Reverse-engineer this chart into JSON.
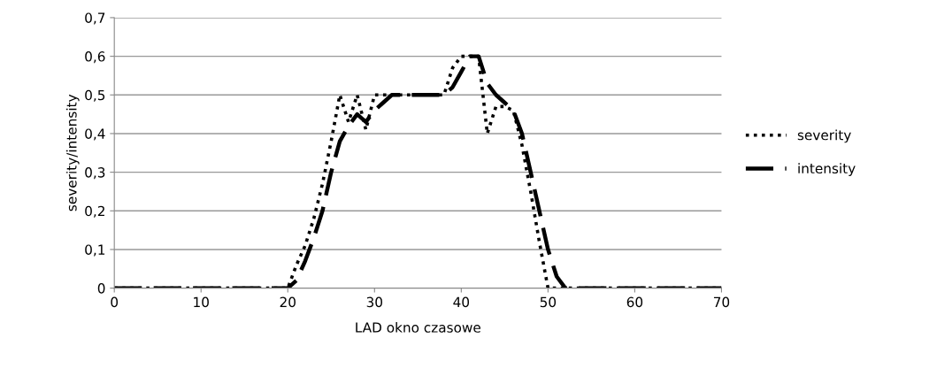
{
  "chart_data": {
    "type": "line",
    "xlabel": "LAD okno czasowe",
    "ylabel": "severity/intensity",
    "xlim": [
      0,
      70
    ],
    "ylim": [
      0,
      0.7
    ],
    "xticks": [
      0,
      10,
      20,
      30,
      40,
      50,
      60,
      70
    ],
    "yticks": [
      {
        "value": 0,
        "label": "0"
      },
      {
        "value": 0.1,
        "label": "0,1"
      },
      {
        "value": 0.2,
        "label": "0,2"
      },
      {
        "value": 0.3,
        "label": "0,3"
      },
      {
        "value": 0.4,
        "label": "0,4"
      },
      {
        "value": 0.5,
        "label": "0,5"
      },
      {
        "value": 0.6,
        "label": "0,6"
      },
      {
        "value": 0.7,
        "label": "0,7"
      }
    ],
    "grid": "y",
    "legend": "right",
    "marker": "none",
    "series": [
      {
        "name": "severity",
        "color": "#000000",
        "line_style": "dotted",
        "x": [
          0,
          20,
          21,
          22,
          23,
          24,
          25,
          26,
          27,
          28,
          29,
          30,
          31,
          38,
          39,
          40,
          42,
          43,
          44,
          45,
          46,
          47,
          48,
          49,
          50,
          55,
          70
        ],
        "values": [
          0,
          0,
          0.06,
          0.11,
          0.18,
          0.27,
          0.38,
          0.5,
          0.43,
          0.5,
          0.41,
          0.5,
          0.5,
          0.5,
          0.57,
          0.6,
          0.6,
          0.4,
          0.47,
          0.47,
          0.46,
          0.37,
          0.25,
          0.12,
          0,
          0,
          0
        ]
      },
      {
        "name": "intensity",
        "color": "#000000",
        "line_style": "dashed",
        "x": [
          0,
          20,
          21,
          22,
          23,
          24,
          25,
          26,
          27,
          28,
          29,
          30,
          31,
          32,
          38,
          39,
          40,
          41,
          42,
          43,
          44,
          45,
          46,
          47,
          48,
          49,
          50,
          51,
          52,
          70
        ],
        "values": [
          0,
          0,
          0.02,
          0.07,
          0.13,
          0.2,
          0.3,
          0.38,
          0.42,
          0.45,
          0.43,
          0.46,
          0.48,
          0.5,
          0.5,
          0.52,
          0.56,
          0.6,
          0.6,
          0.53,
          0.5,
          0.48,
          0.46,
          0.4,
          0.3,
          0.2,
          0.1,
          0.03,
          0,
          0
        ]
      }
    ]
  }
}
